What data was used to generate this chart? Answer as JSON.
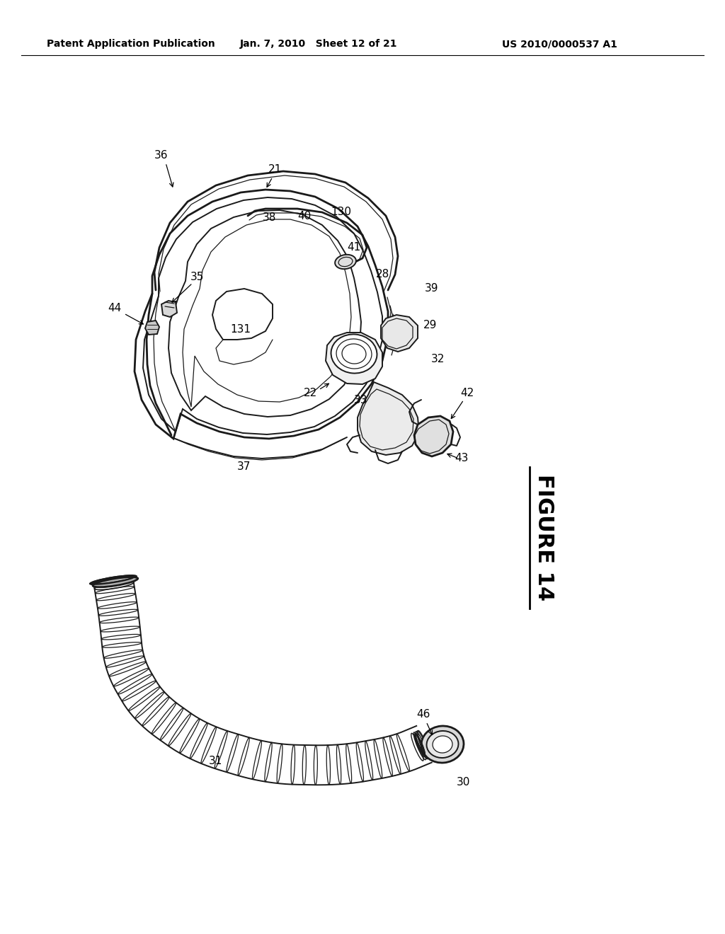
{
  "background_color": "#ffffff",
  "header_left": "Patent Application Publication",
  "header_mid": "Jan. 7, 2010   Sheet 12 of 21",
  "header_right": "US 2010/0000537 A1",
  "figure_label": "FIGURE 14",
  "fig_width": 10.24,
  "fig_height": 13.2,
  "dpi": 100,
  "line_color": "#1a1a1a",
  "lw_thick": 2.0,
  "lw_main": 1.4,
  "lw_thin": 0.9
}
